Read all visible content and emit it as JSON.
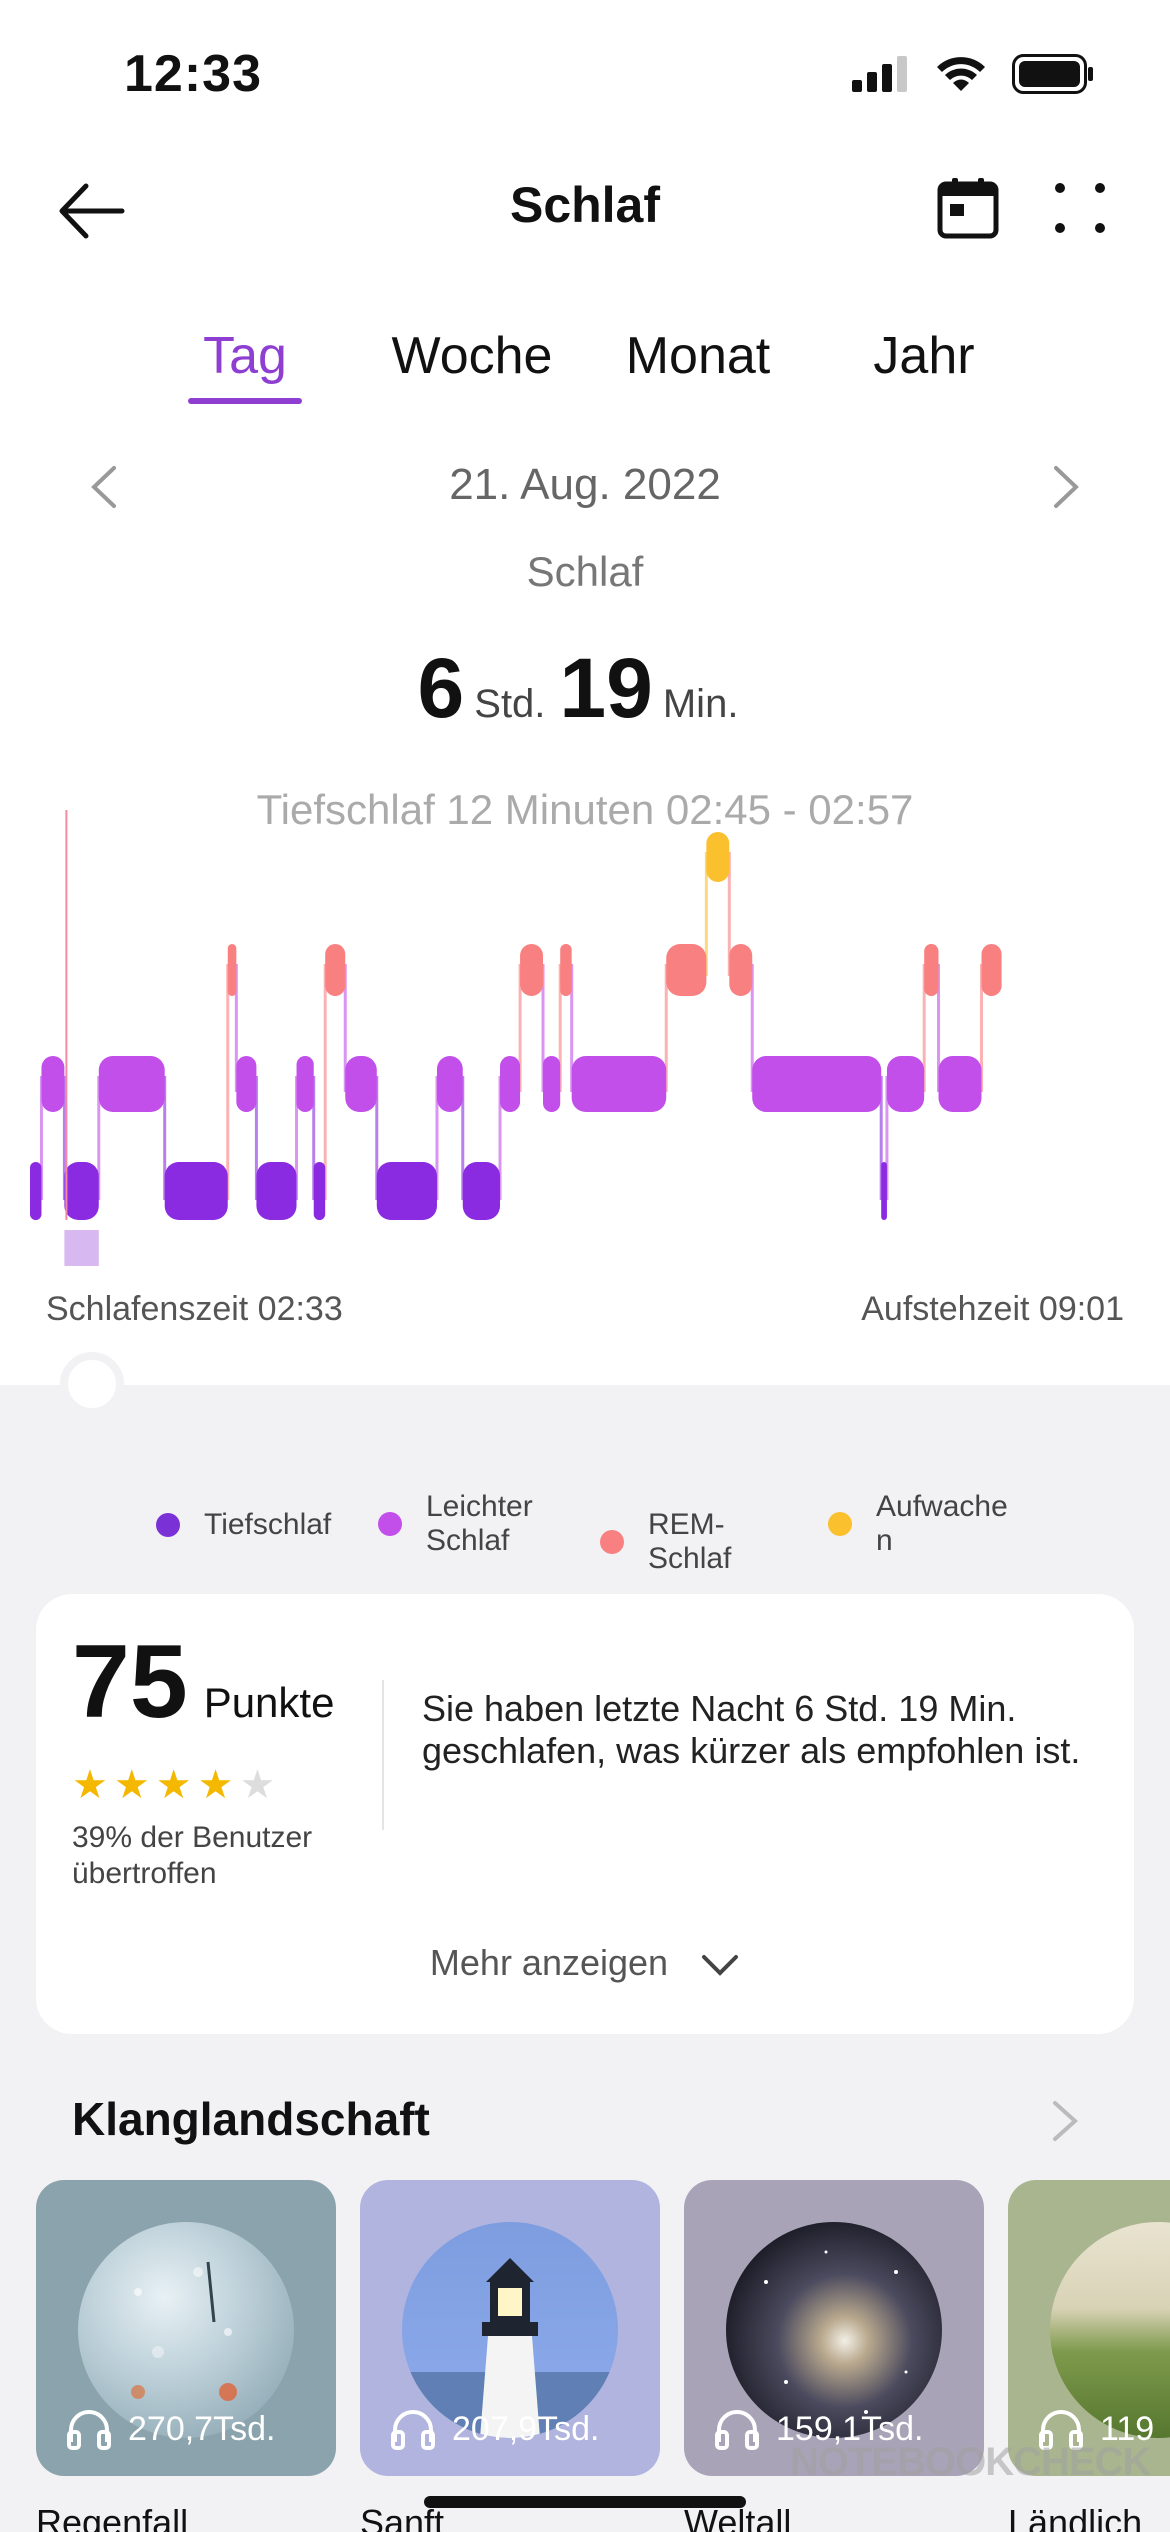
{
  "status_bar": {
    "time": "12:33"
  },
  "header": {
    "title": "Schlaf"
  },
  "tabs": [
    {
      "label": "Tag",
      "active": true
    },
    {
      "label": "Woche",
      "active": false
    },
    {
      "label": "Monat",
      "active": false
    },
    {
      "label": "Jahr",
      "active": false
    }
  ],
  "date": "21. Aug. 2022",
  "section_label": "Schlaf",
  "duration": {
    "hours": "6",
    "hours_unit": "Std.",
    "minutes": "19",
    "minutes_unit": "Min."
  },
  "detail": "Tiefschlaf 12 Minuten 02:45 - 02:57",
  "sleep_start": "Schlafenszeit 02:33",
  "wake_time": "Aufstehzeit 09:01",
  "chart_data": {
    "type": "area",
    "stages": [
      "Aufwachen",
      "REM-Schlaf",
      "Leichter Schlaf",
      "Tiefschlaf"
    ],
    "colors": {
      "Tiefschlaf": "#8a2be2",
      "Leichter Schlaf": "#c24fea",
      "REM-Schlaf": "#f98080",
      "Aufwachen": "#fbc02d"
    },
    "x_start": "02:33",
    "x_end": "09:01",
    "segments": [
      {
        "from": "02:33",
        "to": "02:37",
        "stage": "Tiefschlaf"
      },
      {
        "from": "02:37",
        "to": "02:45",
        "stage": "Leichter Schlaf"
      },
      {
        "from": "02:45",
        "to": "02:57",
        "stage": "Tiefschlaf"
      },
      {
        "from": "02:57",
        "to": "03:20",
        "stage": "Leichter Schlaf"
      },
      {
        "from": "03:20",
        "to": "03:42",
        "stage": "Tiefschlaf"
      },
      {
        "from": "03:42",
        "to": "03:45",
        "stage": "REM-Schlaf"
      },
      {
        "from": "03:45",
        "to": "03:52",
        "stage": "Leichter Schlaf"
      },
      {
        "from": "03:52",
        "to": "04:06",
        "stage": "Tiefschlaf"
      },
      {
        "from": "04:06",
        "to": "04:12",
        "stage": "Leichter Schlaf"
      },
      {
        "from": "04:12",
        "to": "04:16",
        "stage": "Tiefschlaf"
      },
      {
        "from": "04:16",
        "to": "04:23",
        "stage": "REM-Schlaf"
      },
      {
        "from": "04:23",
        "to": "04:34",
        "stage": "Leichter Schlaf"
      },
      {
        "from": "04:34",
        "to": "04:55",
        "stage": "Tiefschlaf"
      },
      {
        "from": "04:55",
        "to": "05:04",
        "stage": "Leichter Schlaf"
      },
      {
        "from": "05:04",
        "to": "05:17",
        "stage": "Tiefschlaf"
      },
      {
        "from": "05:17",
        "to": "05:24",
        "stage": "Leichter Schlaf"
      },
      {
        "from": "05:24",
        "to": "05:32",
        "stage": "REM-Schlaf"
      },
      {
        "from": "05:32",
        "to": "05:38",
        "stage": "Leichter Schlaf"
      },
      {
        "from": "05:38",
        "to": "05:42",
        "stage": "REM-Schlaf"
      },
      {
        "from": "05:42",
        "to": "06:15",
        "stage": "Leichter Schlaf"
      },
      {
        "from": "06:15",
        "to": "06:29",
        "stage": "REM-Schlaf"
      },
      {
        "from": "06:29",
        "to": "06:37",
        "stage": "Aufwachen"
      },
      {
        "from": "06:37",
        "to": "06:45",
        "stage": "REM-Schlaf"
      },
      {
        "from": "06:45",
        "to": "07:30",
        "stage": "Leichter Schlaf"
      },
      {
        "from": "07:30",
        "to": "07:32",
        "stage": "Tiefschlaf"
      },
      {
        "from": "07:32",
        "to": "07:45",
        "stage": "Leichter Schlaf"
      },
      {
        "from": "07:45",
        "to": "07:50",
        "stage": "REM-Schlaf"
      },
      {
        "from": "07:50",
        "to": "08:05",
        "stage": "Leichter Schlaf"
      },
      {
        "from": "08:05",
        "to": "08:12",
        "stage": "REM-Schlaf"
      }
    ]
  },
  "legend": [
    {
      "label": "Tiefschlaf",
      "color": "#7a32d6"
    },
    {
      "label": "Leichter Schlaf",
      "color": "#c24fea"
    },
    {
      "label": "REM-Schlaf",
      "color": "#f98080"
    },
    {
      "label": "Aufwachen",
      "color": "#fbc02d"
    }
  ],
  "score_card": {
    "score": "75",
    "score_unit": "Punkte",
    "stars_filled": 4,
    "stars_total": 5,
    "percentile": "39% der Benutzer übertroffen",
    "verdict": "Sie haben letzte Nacht 6 Std. 19 Min. geschlafen, was kürzer als empfohlen ist.",
    "more_label": "Mehr anzeigen"
  },
  "soundscape": {
    "title": "Klanglandschaft",
    "items": [
      {
        "name": "Regenfall",
        "plays": "270,7Tsd.",
        "icon": "headphones-icon"
      },
      {
        "name": "Sanft",
        "plays": "207,9Tsd.",
        "icon": "headphones-icon"
      },
      {
        "name": "Weltall",
        "plays": "159,1Tsd.",
        "icon": "headphones-icon"
      },
      {
        "name": "Ländlich",
        "plays": "119",
        "icon": "headphones-icon"
      }
    ]
  },
  "watermark": "NOTEBOOKCHECK"
}
